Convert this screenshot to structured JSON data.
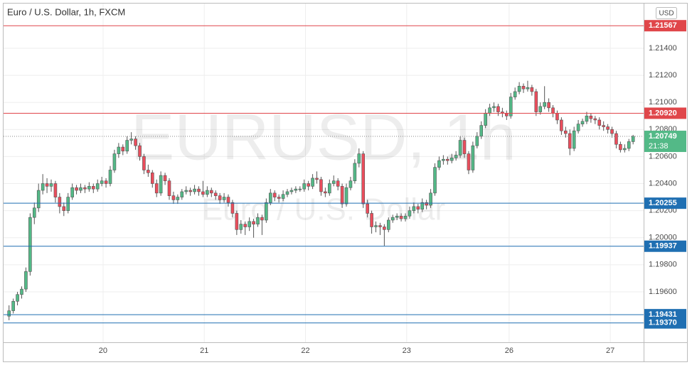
{
  "chart_data": {
    "type": "candlestick",
    "title": "Euro / U.S. Dollar, 1h, FXCM",
    "currency": "USD",
    "watermark": "EURUSD, 1h",
    "watermark_subtitle": "Euro / U.S. Dollar",
    "up_color": "#53b987",
    "down_color": "#eb4d5c",
    "grid": true,
    "ylim": [
      1.19227,
      1.21757
    ],
    "yticks": [
      {
        "value": 1.196,
        "label": "1.19600"
      },
      {
        "value": 1.198,
        "label": "1.19800"
      },
      {
        "value": 1.2,
        "label": "1.20000"
      },
      {
        "value": 1.202,
        "label": "1.20200"
      },
      {
        "value": 1.204,
        "label": "1.20400"
      },
      {
        "value": 1.206,
        "label": "1.20600"
      },
      {
        "value": 1.208,
        "label": "1.20800"
      },
      {
        "value": 1.21,
        "label": "1.21000"
      },
      {
        "value": 1.212,
        "label": "1.21200"
      },
      {
        "value": 1.214,
        "label": "1.21400"
      }
    ],
    "xlim": [
      -1.3,
      150.5
    ],
    "xticks": [
      {
        "value": 22.3,
        "label": "20"
      },
      {
        "value": 46.3,
        "label": "21"
      },
      {
        "value": 70.3,
        "label": "22"
      },
      {
        "value": 94.3,
        "label": "23"
      },
      {
        "value": 118.6,
        "label": "26"
      },
      {
        "value": 142.6,
        "label": "27"
      }
    ],
    "levels": [
      {
        "value": 1.21567,
        "color": "#e0464a"
      },
      {
        "value": 1.2092,
        "label": "1.20920",
        "color": "#e0464a"
      },
      {
        "value": 1.20255,
        "color": "#1f6fb2"
      },
      {
        "value": 1.19937,
        "color": "#1f6fb2"
      },
      {
        "value": 1.19431,
        "color": "#1f6fb2"
      },
      {
        "value": 1.1937,
        "label": "1.19370",
        "color": "#1f6fb2"
      }
    ],
    "last_price": {
      "value": 1.20749,
      "countdown": "21:38",
      "color": "#53b987"
    },
    "ohlc": [
      [
        1.1942,
        1.195,
        1.1939,
        1.1946
      ],
      [
        1.1946,
        1.1955,
        1.1944,
        1.1953
      ],
      [
        1.1953,
        1.196,
        1.195,
        1.1958
      ],
      [
        1.1958,
        1.1964,
        1.1955,
        1.1962
      ],
      [
        1.1962,
        1.1978,
        1.196,
        1.1975
      ],
      [
        1.1975,
        1.2018,
        1.1972,
        1.2015
      ],
      [
        1.2015,
        1.2026,
        1.201,
        1.2022
      ],
      [
        1.2022,
        1.204,
        1.2019,
        1.2035
      ],
      [
        1.2035,
        1.2047,
        1.2032,
        1.204
      ],
      [
        1.204,
        1.2044,
        1.2033,
        1.2038
      ],
      [
        1.2038,
        1.2043,
        1.2034,
        1.204
      ],
      [
        1.204,
        1.2042,
        1.2026,
        1.203
      ],
      [
        1.203,
        1.2033,
        1.2018,
        1.2023
      ],
      [
        1.2023,
        1.2026,
        1.2016,
        1.202
      ],
      [
        1.202,
        1.2033,
        1.2018,
        1.203
      ],
      [
        1.203,
        1.204,
        1.2028,
        1.2037
      ],
      [
        1.2037,
        1.2039,
        1.2032,
        1.2035
      ],
      [
        1.2035,
        1.204,
        1.2033,
        1.2037
      ],
      [
        1.2037,
        1.2039,
        1.2033,
        1.2036
      ],
      [
        1.2036,
        1.2041,
        1.2034,
        1.2038
      ],
      [
        1.2038,
        1.204,
        1.2033,
        1.2036
      ],
      [
        1.2036,
        1.2043,
        1.2034,
        1.204
      ],
      [
        1.204,
        1.2045,
        1.2038,
        1.2042
      ],
      [
        1.2042,
        1.2044,
        1.2037,
        1.204
      ],
      [
        1.204,
        1.2053,
        1.2038,
        1.205
      ],
      [
        1.205,
        1.2065,
        1.2048,
        1.2062
      ],
      [
        1.2062,
        1.207,
        1.2059,
        1.2067
      ],
      [
        1.2067,
        1.2069,
        1.2061,
        1.2064
      ],
      [
        1.2064,
        1.2075,
        1.2062,
        1.2072
      ],
      [
        1.2072,
        1.2078,
        1.2069,
        1.2073
      ],
      [
        1.2073,
        1.2075,
        1.2065,
        1.2068
      ],
      [
        1.2068,
        1.207,
        1.2057,
        1.206
      ],
      [
        1.206,
        1.2062,
        1.2047,
        1.205
      ],
      [
        1.205,
        1.2054,
        1.2045,
        1.2048
      ],
      [
        1.2048,
        1.205,
        1.2037,
        1.204
      ],
      [
        1.204,
        1.2043,
        1.203,
        1.2033
      ],
      [
        1.2033,
        1.2049,
        1.2031,
        1.2046
      ],
      [
        1.2046,
        1.2048,
        1.2039,
        1.2042
      ],
      [
        1.2042,
        1.2044,
        1.2028,
        1.2031
      ],
      [
        1.2031,
        1.2034,
        1.2025,
        1.2028
      ],
      [
        1.2028,
        1.2032,
        1.2025,
        1.203
      ],
      [
        1.203,
        1.2036,
        1.2028,
        1.2034
      ],
      [
        1.2034,
        1.2038,
        1.2032,
        1.2035
      ],
      [
        1.2035,
        1.2037,
        1.2031,
        1.2034
      ],
      [
        1.2034,
        1.2039,
        1.2032,
        1.2036
      ],
      [
        1.2036,
        1.2038,
        1.2031,
        1.2034
      ],
      [
        1.2034,
        1.2042,
        1.203,
        1.2032
      ],
      [
        1.2032,
        1.2038,
        1.203,
        1.2035
      ],
      [
        1.2035,
        1.2037,
        1.203,
        1.2033
      ],
      [
        1.2033,
        1.2035,
        1.2028,
        1.2031
      ],
      [
        1.2031,
        1.2033,
        1.2025,
        1.2028
      ],
      [
        1.2028,
        1.2033,
        1.2026,
        1.203
      ],
      [
        1.203,
        1.2032,
        1.2023,
        1.2026
      ],
      [
        1.2026,
        1.2028,
        1.2015,
        1.2018
      ],
      [
        1.2018,
        1.202,
        1.2002,
        1.2006
      ],
      [
        1.2006,
        1.2013,
        1.2003,
        1.201
      ],
      [
        1.201,
        1.2012,
        1.2002,
        1.2008
      ],
      [
        1.2008,
        1.2015,
        1.2005,
        1.2012
      ],
      [
        1.2012,
        1.2014,
        1.2,
        1.201
      ],
      [
        1.201,
        1.2018,
        1.2008,
        1.2015
      ],
      [
        1.2015,
        1.2017,
        1.2002,
        1.2013
      ],
      [
        1.2013,
        1.2029,
        1.2011,
        1.2026
      ],
      [
        1.2026,
        1.2036,
        1.2024,
        1.2033
      ],
      [
        1.2033,
        1.2035,
        1.2027,
        1.203
      ],
      [
        1.203,
        1.2032,
        1.2026,
        1.2029
      ],
      [
        1.2029,
        1.2035,
        1.2027,
        1.2032
      ],
      [
        1.2032,
        1.2036,
        1.203,
        1.2034
      ],
      [
        1.2034,
        1.2037,
        1.2032,
        1.2035
      ],
      [
        1.2035,
        1.2038,
        1.2033,
        1.2036
      ],
      [
        1.2036,
        1.2038,
        1.2034,
        1.2036
      ],
      [
        1.2036,
        1.2043,
        1.2034,
        1.204
      ],
      [
        1.204,
        1.2042,
        1.2035,
        1.2038
      ],
      [
        1.2038,
        1.2047,
        1.2036,
        1.2044
      ],
      [
        1.2044,
        1.2049,
        1.204,
        1.2043
      ],
      [
        1.2043,
        1.2045,
        1.2031,
        1.2034
      ],
      [
        1.2034,
        1.2037,
        1.203,
        1.2033
      ],
      [
        1.2033,
        1.2043,
        1.2031,
        1.204
      ],
      [
        1.204,
        1.2046,
        1.2038,
        1.2042
      ],
      [
        1.2042,
        1.2044,
        1.2035,
        1.2038
      ],
      [
        1.2038,
        1.204,
        1.2022,
        1.2025
      ],
      [
        1.2025,
        1.204,
        1.2023,
        1.2037
      ],
      [
        1.2037,
        1.2045,
        1.2035,
        1.2042
      ],
      [
        1.2042,
        1.2058,
        1.204,
        1.2055
      ],
      [
        1.2055,
        1.2066,
        1.2052,
        1.2062
      ],
      [
        1.2062,
        1.2064,
        1.2022,
        1.2025
      ],
      [
        1.2025,
        1.2028,
        1.2015,
        1.2018
      ],
      [
        1.2018,
        1.202,
        1.2003,
        1.2008
      ],
      [
        1.2008,
        1.2012,
        1.2004,
        1.2009
      ],
      [
        1.2009,
        1.2011,
        1.2002,
        1.2008
      ],
      [
        1.2008,
        1.201,
        1.1994,
        1.2006
      ],
      [
        1.2006,
        1.2015,
        1.2004,
        1.2013
      ],
      [
        1.2013,
        1.2017,
        1.2011,
        1.2015
      ],
      [
        1.2015,
        1.2018,
        1.2013,
        1.2016
      ],
      [
        1.2016,
        1.2018,
        1.2012,
        1.2014
      ],
      [
        1.2014,
        1.2018,
        1.2012,
        1.2016
      ],
      [
        1.2016,
        1.2023,
        1.2014,
        1.202
      ],
      [
        1.202,
        1.2026,
        1.2018,
        1.2023
      ],
      [
        1.2023,
        1.2025,
        1.2018,
        1.2021
      ],
      [
        1.2021,
        1.2029,
        1.2019,
        1.2026
      ],
      [
        1.2026,
        1.2028,
        1.2021,
        1.2024
      ],
      [
        1.2024,
        1.2036,
        1.2022,
        1.2033
      ],
      [
        1.2033,
        1.2055,
        1.2031,
        1.2052
      ],
      [
        1.2052,
        1.206,
        1.205,
        1.2057
      ],
      [
        1.2057,
        1.2061,
        1.2054,
        1.2058
      ],
      [
        1.2058,
        1.206,
        1.2054,
        1.2057
      ],
      [
        1.2057,
        1.2062,
        1.2055,
        1.2059
      ],
      [
        1.2059,
        1.2064,
        1.2057,
        1.2061
      ],
      [
        1.2061,
        1.2075,
        1.2059,
        1.2072
      ],
      [
        1.2072,
        1.2074,
        1.2059,
        1.2062
      ],
      [
        1.2062,
        1.2064,
        1.2047,
        1.205
      ],
      [
        1.205,
        1.2071,
        1.2048,
        1.2068
      ],
      [
        1.2068,
        1.2078,
        1.2066,
        1.2075
      ],
      [
        1.2075,
        1.2086,
        1.2073,
        1.2083
      ],
      [
        1.2083,
        1.2095,
        1.2081,
        1.2092
      ],
      [
        1.2092,
        1.2099,
        1.209,
        1.2096
      ],
      [
        1.2096,
        1.21,
        1.2093,
        1.2097
      ],
      [
        1.2097,
        1.2099,
        1.209,
        1.2093
      ],
      [
        1.2093,
        1.2096,
        1.2089,
        1.2092
      ],
      [
        1.2092,
        1.2094,
        1.2087,
        1.209
      ],
      [
        1.209,
        1.2107,
        1.2088,
        1.2104
      ],
      [
        1.2104,
        1.2111,
        1.2102,
        1.2108
      ],
      [
        1.2108,
        1.2115,
        1.2106,
        1.2112
      ],
      [
        1.2112,
        1.2114,
        1.2107,
        1.211
      ],
      [
        1.211,
        1.2116,
        1.2108,
        1.2111
      ],
      [
        1.2111,
        1.2113,
        1.2105,
        1.2108
      ],
      [
        1.2108,
        1.211,
        1.209,
        1.2093
      ],
      [
        1.2093,
        1.21,
        1.2091,
        1.2097
      ],
      [
        1.2097,
        1.2112,
        1.2095,
        1.21
      ],
      [
        1.21,
        1.2103,
        1.2093,
        1.2096
      ],
      [
        1.2096,
        1.2098,
        1.2089,
        1.2092
      ],
      [
        1.2092,
        1.2094,
        1.2084,
        1.2087
      ],
      [
        1.2087,
        1.2089,
        1.2076,
        1.2079
      ],
      [
        1.2079,
        1.2082,
        1.2074,
        1.2077
      ],
      [
        1.2077,
        1.208,
        1.2061,
        1.2066
      ],
      [
        1.2066,
        1.2082,
        1.2064,
        1.2079
      ],
      [
        1.2079,
        1.2087,
        1.2077,
        1.2084
      ],
      [
        1.2084,
        1.2088,
        1.2082,
        1.2086
      ],
      [
        1.2086,
        1.2093,
        1.2084,
        1.209
      ],
      [
        1.209,
        1.2092,
        1.2085,
        1.2088
      ],
      [
        1.2088,
        1.209,
        1.2084,
        1.2087
      ],
      [
        1.2087,
        1.2089,
        1.208,
        1.2083
      ],
      [
        1.2083,
        1.2086,
        1.2079,
        1.2082
      ],
      [
        1.2082,
        1.2084,
        1.2077,
        1.208
      ],
      [
        1.208,
        1.2082,
        1.2074,
        1.2077
      ],
      [
        1.2077,
        1.2079,
        1.2066,
        1.2069
      ],
      [
        1.2069,
        1.2071,
        1.2063,
        1.2065
      ],
      [
        1.2065,
        1.2069,
        1.2063,
        1.2066
      ],
      [
        1.2066,
        1.2073,
        1.2064,
        1.2071
      ],
      [
        1.2071,
        1.2076,
        1.2069,
        1.2075
      ]
    ]
  }
}
